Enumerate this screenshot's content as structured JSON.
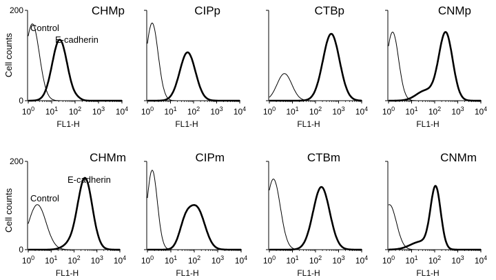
{
  "figure": {
    "ylabel": "Cell counts",
    "xlabel": "FL1-H",
    "y_tick_labels": [
      "0",
      "200"
    ],
    "x_tick_labels": [
      "10^0",
      "10^1",
      "10^2",
      "10^3",
      "10^4"
    ]
  },
  "chart_data": [
    {
      "type": "line",
      "title": "CHMp",
      "xscale": "log",
      "xlim": [
        1,
        10000
      ],
      "ylim": [
        0,
        200
      ],
      "annotations": [
        "Control",
        "E-cadherin"
      ],
      "series": [
        {
          "name": "Control",
          "color": "#000000",
          "line": "thin",
          "peak_x": 1.5,
          "peak_y": 170,
          "width_decades": 0.3
        },
        {
          "name": "E-cadherin",
          "color": "#000000",
          "line": "thick",
          "peak_x": 22,
          "peak_y": 135,
          "width_decades": 0.32,
          "extra": [
            {
              "x": 130,
              "y": 3,
              "w": 0.15
            }
          ]
        }
      ]
    },
    {
      "type": "line",
      "title": "CIPp",
      "xscale": "log",
      "xlim": [
        1,
        10000
      ],
      "ylim": [
        0,
        200
      ],
      "series": [
        {
          "name": "Control",
          "color": "#000000",
          "line": "thin",
          "peak_x": 1.6,
          "peak_y": 172,
          "width_decades": 0.26
        },
        {
          "name": "E-cadherin",
          "color": "#000000",
          "line": "thick",
          "peak_x": 55,
          "peak_y": 107,
          "width_decades": 0.34
        }
      ]
    },
    {
      "type": "line",
      "title": "CTBp",
      "xscale": "log",
      "xlim": [
        1,
        10000
      ],
      "ylim": [
        0,
        200
      ],
      "series": [
        {
          "name": "Control",
          "color": "#000000",
          "line": "thin",
          "peak_x": 4.5,
          "peak_y": 60,
          "width_decades": 0.32
        },
        {
          "name": "E-cadherin",
          "color": "#000000",
          "line": "thick",
          "peak_x": 480,
          "peak_y": 148,
          "width_decades": 0.36
        }
      ]
    },
    {
      "type": "line",
      "title": "CNMp",
      "xscale": "log",
      "xlim": [
        1,
        10000
      ],
      "ylim": [
        0,
        200
      ],
      "series": [
        {
          "name": "Control",
          "color": "#000000",
          "line": "thin",
          "peak_x": 1.5,
          "peak_y": 152,
          "width_decades": 0.26
        },
        {
          "name": "E-cadherin",
          "color": "#000000",
          "line": "thick",
          "peak_x": 300,
          "peak_y": 150,
          "width_decades": 0.3,
          "extra": [
            {
              "x": 40,
              "y": 22,
              "w": 0.4
            }
          ]
        }
      ]
    },
    {
      "type": "line",
      "title": "CHMm",
      "xscale": "log",
      "xlim": [
        1,
        10000
      ],
      "ylim": [
        0,
        200
      ],
      "annotations": [
        "Control",
        "E-cadherin"
      ],
      "series": [
        {
          "name": "Control",
          "color": "#000000",
          "line": "thin",
          "peak_x": 2.5,
          "peak_y": 102,
          "width_decades": 0.38
        },
        {
          "name": "E-cadherin",
          "color": "#000000",
          "line": "thick",
          "peak_x": 300,
          "peak_y": 162,
          "width_decades": 0.32,
          "extra": [
            {
              "x": 60,
              "y": 10,
              "w": 0.3
            }
          ]
        }
      ]
    },
    {
      "type": "line",
      "title": "CIPm",
      "xscale": "log",
      "xlim": [
        1,
        10000
      ],
      "ylim": [
        0,
        200
      ],
      "series": [
        {
          "name": "Control",
          "color": "#000000",
          "line": "thin",
          "peak_x": 1.6,
          "peak_y": 180,
          "width_decades": 0.22
        },
        {
          "name": "E-cadherin",
          "color": "#000000",
          "line": "thick",
          "peak_x": 130,
          "peak_y": 92,
          "width_decades": 0.34,
          "extra": [
            {
              "x": 40,
              "y": 50,
              "w": 0.25
            }
          ]
        }
      ]
    },
    {
      "type": "line",
      "title": "CTBm",
      "xscale": "log",
      "xlim": [
        1,
        10000
      ],
      "ylim": [
        0,
        200
      ],
      "series": [
        {
          "name": "Control",
          "color": "#000000",
          "line": "thin",
          "peak_x": 1.5,
          "peak_y": 160,
          "width_decades": 0.3
        },
        {
          "name": "E-cadherin",
          "color": "#000000",
          "line": "thick",
          "peak_x": 180,
          "peak_y": 142,
          "width_decades": 0.36
        }
      ]
    },
    {
      "type": "line",
      "title": "CNMm",
      "xscale": "log",
      "xlim": [
        1,
        10000
      ],
      "ylim": [
        0,
        200
      ],
      "series": [
        {
          "name": "Control",
          "color": "#000000",
          "line": "thin",
          "peak_x": 1.1,
          "peak_y": 102,
          "width_decades": 0.3
        },
        {
          "name": "E-cadherin",
          "color": "#000000",
          "line": "thick",
          "peak_x": 110,
          "peak_y": 138,
          "width_decades": 0.22,
          "extra": [
            {
              "x": 25,
              "y": 18,
              "w": 0.45
            }
          ]
        }
      ]
    }
  ]
}
